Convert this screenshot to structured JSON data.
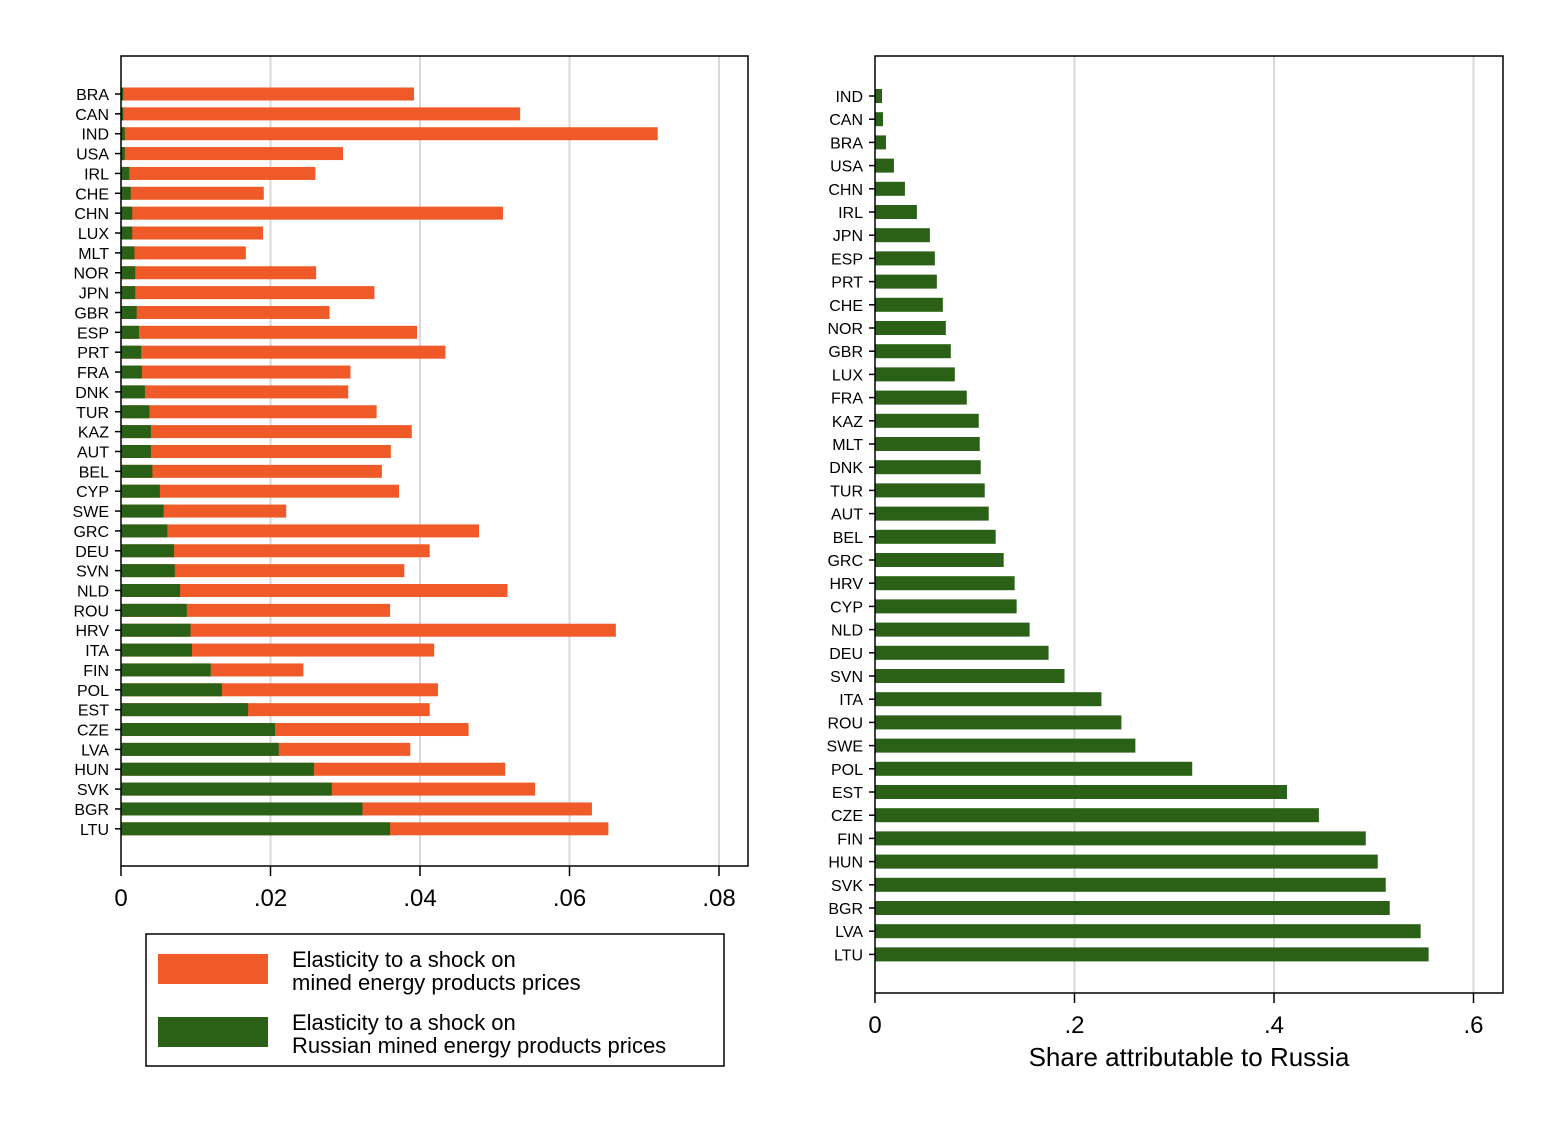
{
  "colors": {
    "total": "#f05a28",
    "russian": "#2a6116",
    "grid": "#d9d9d9",
    "frame": "#000000"
  },
  "legend": {
    "items": [
      {
        "lines": [
          "Elasticity to a shock on",
          "mined energy products prices"
        ],
        "color_key": "total"
      },
      {
        "lines": [
          "Elasticity to a shock on",
          "Russian mined energy products prices"
        ],
        "color_key": "russian"
      }
    ]
  },
  "chart_data": [
    {
      "type": "bar",
      "orientation": "horizontal",
      "stacked": "overlay",
      "xlabel": "",
      "xlim": [
        0,
        0.085
      ],
      "xticks": [
        0,
        0.02,
        0.04,
        0.06,
        0.08
      ],
      "xtick_labels": [
        "0",
        ".02",
        ".04",
        ".06",
        ".08"
      ],
      "grid": true,
      "legend_position": "below",
      "categories": [
        "BRA",
        "CAN",
        "IND",
        "USA",
        "IRL",
        "CHE",
        "CHN",
        "LUX",
        "MLT",
        "NOR",
        "JPN",
        "GBR",
        "ESP",
        "PRT",
        "FRA",
        "DNK",
        "TUR",
        "KAZ",
        "AUT",
        "BEL",
        "CYP",
        "SWE",
        "GRC",
        "DEU",
        "SVN",
        "NLD",
        "ROU",
        "HRV",
        "ITA",
        "FIN",
        "POL",
        "EST",
        "CZE",
        "LVA",
        "HUN",
        "SVK",
        "BGR",
        "LTU"
      ],
      "series": [
        {
          "name": "Elasticity to a shock on mined energy products prices",
          "values": [
            0.0392,
            0.0534,
            0.0718,
            0.0297,
            0.026,
            0.0191,
            0.0511,
            0.019,
            0.0167,
            0.0261,
            0.0339,
            0.0279,
            0.0396,
            0.0434,
            0.0307,
            0.0304,
            0.0342,
            0.0389,
            0.0361,
            0.0349,
            0.0372,
            0.0221,
            0.0479,
            0.0413,
            0.0379,
            0.0517,
            0.036,
            0.0662,
            0.0419,
            0.0244,
            0.0424,
            0.0413,
            0.0465,
            0.0387,
            0.0514,
            0.0554,
            0.063,
            0.0652
          ]
        },
        {
          "name": "Elasticity to a shock on Russian mined energy products prices",
          "values": [
            0.0003,
            0.0003,
            0.0005,
            0.0005,
            0.0011,
            0.0013,
            0.0015,
            0.0015,
            0.0018,
            0.0019,
            0.0019,
            0.0021,
            0.0024,
            0.0027,
            0.0028,
            0.0032,
            0.0038,
            0.004,
            0.004,
            0.0042,
            0.0052,
            0.0057,
            0.0062,
            0.0071,
            0.0072,
            0.0079,
            0.0088,
            0.0093,
            0.0095,
            0.012,
            0.0135,
            0.017,
            0.0206,
            0.0211,
            0.0258,
            0.0282,
            0.0323,
            0.036
          ]
        }
      ]
    },
    {
      "type": "bar",
      "orientation": "horizontal",
      "xlabel": "Share attributable to Russia",
      "xlim": [
        0,
        0.63
      ],
      "xticks": [
        0,
        0.2,
        0.4,
        0.6
      ],
      "xtick_labels": [
        "0",
        ".2",
        ".4",
        ".6"
      ],
      "grid": true,
      "categories": [
        "IND",
        "CAN",
        "BRA",
        "USA",
        "CHN",
        "IRL",
        "JPN",
        "ESP",
        "PRT",
        "CHE",
        "NOR",
        "GBR",
        "LUX",
        "FRA",
        "KAZ",
        "MLT",
        "DNK",
        "TUR",
        "AUT",
        "BEL",
        "GRC",
        "HRV",
        "CYP",
        "NLD",
        "DEU",
        "SVN",
        "ITA",
        "ROU",
        "SWE",
        "POL",
        "EST",
        "CZE",
        "FIN",
        "HUN",
        "SVK",
        "BGR",
        "LVA",
        "LTU"
      ],
      "values": [
        0.007,
        0.008,
        0.011,
        0.019,
        0.03,
        0.042,
        0.055,
        0.06,
        0.062,
        0.068,
        0.071,
        0.076,
        0.08,
        0.092,
        0.104,
        0.105,
        0.106,
        0.11,
        0.114,
        0.121,
        0.129,
        0.14,
        0.142,
        0.155,
        0.174,
        0.19,
        0.227,
        0.247,
        0.261,
        0.318,
        0.413,
        0.445,
        0.492,
        0.504,
        0.512,
        0.516,
        0.547,
        0.555
      ]
    }
  ]
}
